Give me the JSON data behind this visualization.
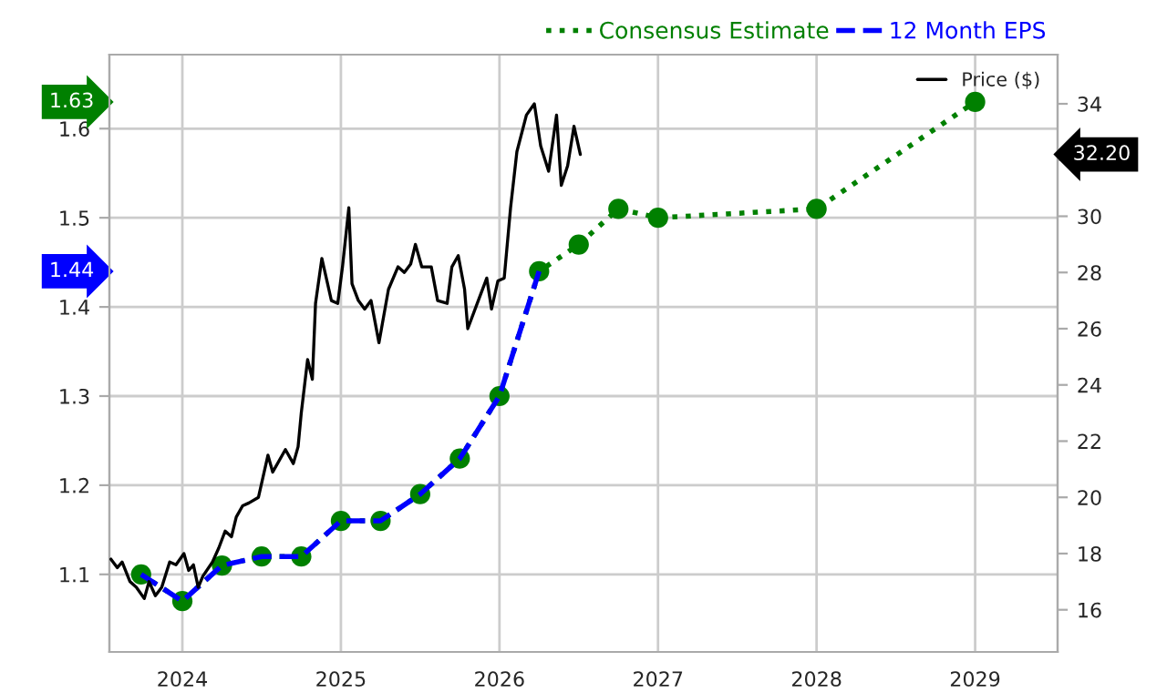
{
  "chart_data": {
    "type": "line",
    "x": [
      2023.74,
      2024.0,
      2024.25,
      2024.5,
      2024.75,
      2025.0,
      2025.25,
      2025.5,
      2025.75,
      2026.0,
      2026.25,
      2026.5,
      2026.75,
      2027.0,
      2028.0,
      2029.0
    ],
    "series": [
      {
        "name": "Consensus Estimate",
        "color": "#008000",
        "line_style": "dotted",
        "marker": "circle",
        "values": [
          1.1,
          1.07,
          1.11,
          1.12,
          1.12,
          1.16,
          1.16,
          1.19,
          1.23,
          1.3,
          1.44,
          1.47,
          1.51,
          1.5,
          1.51,
          1.63
        ]
      },
      {
        "name": "12 Month EPS",
        "color": "#0000ff",
        "line_style": "dashed",
        "marker": "none",
        "x": [
          2023.74,
          2024.0,
          2024.25,
          2024.5,
          2024.75,
          2025.0,
          2025.25,
          2025.5,
          2025.75,
          2026.0,
          2026.25
        ],
        "values": [
          1.1,
          1.07,
          1.11,
          1.12,
          1.12,
          1.16,
          1.16,
          1.19,
          1.23,
          1.3,
          1.44
        ]
      },
      {
        "name": "Price ($)",
        "color": "#000000",
        "line_style": "solid",
        "marker": "none",
        "axis": "y2",
        "x": [
          2023.55,
          2023.59,
          2023.62,
          2023.67,
          2023.71,
          2023.76,
          2023.79,
          2023.83,
          2023.87,
          2023.92,
          2023.96,
          2024.01,
          2024.04,
          2024.07,
          2024.1,
          2024.13,
          2024.19,
          2024.23,
          2024.27,
          2024.31,
          2024.34,
          2024.38,
          2024.42,
          2024.48,
          2024.54,
          2024.57,
          2024.65,
          2024.7,
          2024.73,
          2024.75,
          2024.79,
          2024.82,
          2024.84,
          2024.88,
          2024.94,
          2024.98,
          2025.01,
          2025.05,
          2025.07,
          2025.11,
          2025.15,
          2025.19,
          2025.24,
          2025.3,
          2025.36,
          2025.4,
          2025.44,
          2025.47,
          2025.51,
          2025.57,
          2025.61,
          2025.67,
          2025.7,
          2025.74,
          2025.78,
          2025.8,
          2025.86,
          2025.92,
          2025.95,
          2025.99,
          2026.03,
          2026.07,
          2026.11,
          2026.17,
          2026.22,
          2026.26,
          2026.31,
          2026.36,
          2026.39,
          2026.43,
          2026.47,
          2026.51
        ],
        "values": [
          17.8,
          17.5,
          17.7,
          17.0,
          16.8,
          16.4,
          17.0,
          16.5,
          16.8,
          17.7,
          17.6,
          18.0,
          17.4,
          17.6,
          16.8,
          17.2,
          17.7,
          18.2,
          18.8,
          18.6,
          19.3,
          19.7,
          19.8,
          20.0,
          21.5,
          20.9,
          21.7,
          21.2,
          21.8,
          23.0,
          24.9,
          24.2,
          26.9,
          28.5,
          27.0,
          26.9,
          28.2,
          30.3,
          27.6,
          27.0,
          26.7,
          27.0,
          25.5,
          27.4,
          28.2,
          28.0,
          28.3,
          29.0,
          28.2,
          28.2,
          27.0,
          26.9,
          28.2,
          28.6,
          27.4,
          26.0,
          26.9,
          27.8,
          26.7,
          27.7,
          27.8,
          30.3,
          32.3,
          33.6,
          34.0,
          32.5,
          31.6,
          33.6,
          31.1,
          31.8,
          33.2,
          32.2
        ]
      }
    ],
    "xlim": [
      2023.54,
      2029.52
    ],
    "xticks": [
      2024,
      2025,
      2026,
      2027,
      2028,
      2029
    ],
    "ylim": [
      1.013,
      1.683
    ],
    "yticks": [
      1.1,
      1.2,
      1.3,
      1.4,
      1.5,
      1.6
    ],
    "y2lim": [
      14.5,
      35.75
    ],
    "y2ticks": [
      16,
      18,
      20,
      22,
      24,
      26,
      28,
      30,
      {
        "value": 32,
        "label": null
      },
      34
    ],
    "annotations": [
      "1.63",
      "1.44",
      "32.20"
    ],
    "grid": true,
    "legend": "top right"
  }
}
